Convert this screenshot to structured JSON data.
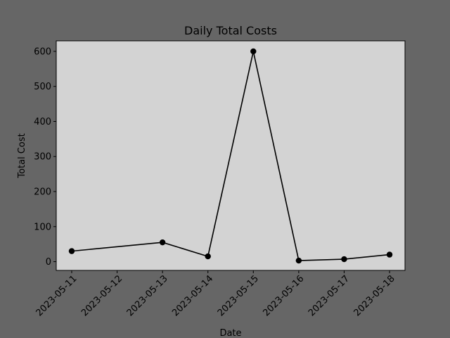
{
  "chart_data": {
    "type": "line",
    "title": "Daily Total Costs",
    "xlabel": "Date",
    "ylabel": "Total Cost",
    "x_ticks": [
      "2023-05-11",
      "2023-05-12",
      "2023-05-13",
      "2023-05-14",
      "2023-05-15",
      "2023-05-16",
      "2023-05-17",
      "2023-05-18"
    ],
    "y_ticks": [
      0,
      100,
      200,
      300,
      400,
      500,
      600
    ],
    "xlim": [
      "2023-05-10T15:50",
      "2023-05-18T08:10"
    ],
    "ylim": [
      -25,
      630
    ],
    "series": [
      {
        "x": [
          "2023-05-11",
          "2023-05-13",
          "2023-05-14",
          "2023-05-15",
          "2023-05-16",
          "2023-05-17",
          "2023-05-18"
        ],
        "y": [
          30,
          55,
          15,
          600,
          3,
          7,
          20
        ],
        "color": "#000000",
        "marker": "circle"
      }
    ],
    "grid": false,
    "legend": "none",
    "colors": {
      "figure_bg": "#666666",
      "plot_bg": "#d3d3d3",
      "line": "#000000"
    }
  }
}
